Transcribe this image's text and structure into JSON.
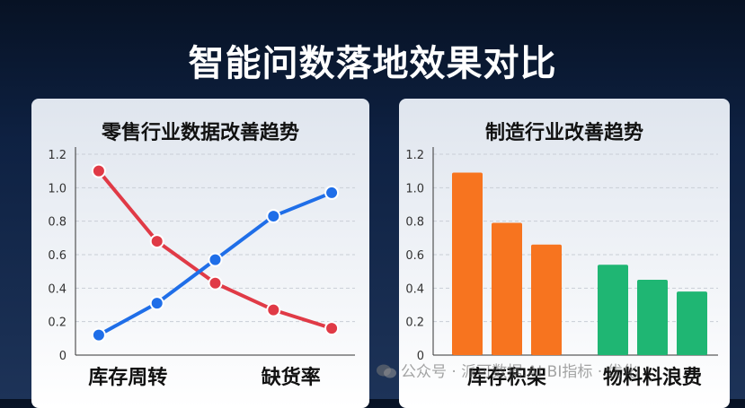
{
  "title": "智能问数落地效果对比",
  "watermark": "公众号 · 派可数据.AI BI指标 · 优化",
  "colors": {
    "red_series": "#e03a46",
    "blue_series": "#1f6ee8",
    "orange_bars": "#f7741f",
    "green_bars": "#1fb673"
  },
  "chart_data": [
    {
      "type": "line",
      "title": "零售行业数据改善趋势",
      "x": [
        1,
        2,
        3,
        4,
        5
      ],
      "ylim": [
        0,
        1.2
      ],
      "yticks": [
        "0",
        "0.2",
        "0.4",
        "0.6",
        "0.8",
        "1.0",
        "1.2"
      ],
      "category_labels": [
        "库存周转",
        "缺货率"
      ],
      "grid": true,
      "series": [
        {
          "color": "#e03a46",
          "values": [
            1.1,
            0.68,
            0.43,
            0.27,
            0.16
          ]
        },
        {
          "color": "#1f6ee8",
          "values": [
            0.12,
            0.31,
            0.57,
            0.83,
            0.97
          ]
        }
      ]
    },
    {
      "type": "bar",
      "title": "制造行业改善趋势",
      "ylim": [
        0,
        1.2
      ],
      "yticks": [
        "0",
        "0.2",
        "0.4",
        "0.6",
        "0.8",
        "1.0",
        "1.2"
      ],
      "category_labels": [
        "库存积架",
        "物料料浪费"
      ],
      "grid": true,
      "groups": [
        {
          "color": "#f7741f",
          "values": [
            1.09,
            0.79,
            0.66
          ]
        },
        {
          "color": "#1fb673",
          "values": [
            0.54,
            0.45,
            0.38
          ]
        }
      ]
    }
  ]
}
